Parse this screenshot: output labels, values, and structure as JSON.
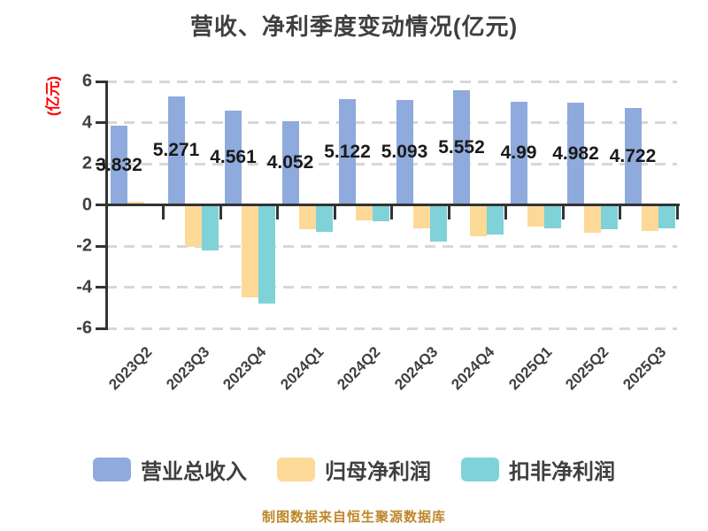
{
  "title": "营收、净利季度变动情况(亿元)",
  "y_axis_title": "(亿元)",
  "footnote": "制图数据来自恒生聚源数据库",
  "colors": {
    "revenue": "#8FAADC",
    "net_profit": "#FDD998",
    "deducted_net_profit": "#7FD2D8",
    "grid": "#D7D7D7",
    "axis": "#333333",
    "title_text": "#3F3F3F",
    "tick_text": "#3F3F3F",
    "y_axis_title_text": "#FF0000",
    "footnote_text": "#BE862A",
    "bar_label_text": "#1A1A1A"
  },
  "legend": [
    {
      "label": "营业总收入",
      "color_key": "revenue"
    },
    {
      "label": "归母净利润",
      "color_key": "net_profit"
    },
    {
      "label": "扣非净利润",
      "color_key": "deducted_net_profit"
    }
  ],
  "chart_data": {
    "type": "bar",
    "title": "营收、净利季度变动情况(亿元)",
    "ylabel": "(亿元)",
    "categories": [
      "2023Q2",
      "2023Q3",
      "2023Q4",
      "2024Q1",
      "2024Q2",
      "2024Q3",
      "2024Q4",
      "2025Q1",
      "2025Q2",
      "2025Q3"
    ],
    "series": [
      {
        "name": "营业总收入",
        "color_key": "revenue",
        "values": [
          3.832,
          5.271,
          4.561,
          4.052,
          5.122,
          5.093,
          5.552,
          4.99,
          4.982,
          4.722
        ]
      },
      {
        "name": "归母净利润",
        "color_key": "net_profit",
        "values": [
          0.15,
          -2.05,
          -4.5,
          -1.2,
          -0.75,
          -1.13,
          -1.52,
          -1.05,
          -1.35,
          -1.25
        ]
      },
      {
        "name": "扣非净利润",
        "color_key": "deducted_net_profit",
        "values": [
          -0.03,
          -2.2,
          -4.8,
          -1.3,
          -0.8,
          -1.78,
          -1.45,
          -1.13,
          -1.2,
          -1.13
        ]
      }
    ],
    "bar_labels": [
      "3.832",
      "5.271",
      "4.561",
      "4.052",
      "5.122",
      "5.093",
      "5.552",
      "4.99",
      "4.982",
      "4.722"
    ],
    "labeled_series": "营业总收入",
    "ylim": [
      -6,
      6
    ],
    "yticks": [
      6,
      4,
      2,
      0,
      -2,
      -4,
      -6
    ],
    "grid": "horizontal-dashed",
    "legend_position": "bottom"
  }
}
